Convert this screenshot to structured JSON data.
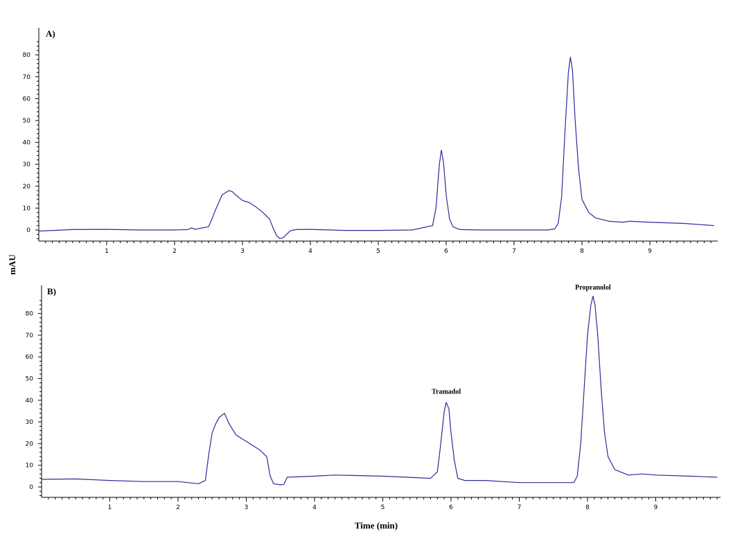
{
  "chart_data": [
    {
      "type": "line",
      "panel_label": "A)",
      "ylabel": "mAU",
      "xlabel": "",
      "xlim": [
        0,
        9.95
      ],
      "ylim": [
        -5,
        90
      ],
      "x_ticks": [
        1,
        2,
        3,
        4,
        5,
        6,
        7,
        8,
        9
      ],
      "y_ticks": [
        0,
        10,
        20,
        30,
        40,
        50,
        60,
        70,
        80
      ],
      "grid": false,
      "line_color": "#2b2b9a",
      "annotations": [],
      "series": [
        {
          "x": [
            0,
            0.5,
            1,
            1.5,
            2,
            2.2,
            2.25,
            2.3,
            2.5,
            2.55,
            2.6,
            2.7,
            2.8,
            2.85,
            2.9,
            3.0,
            3.1,
            3.2,
            3.3,
            3.4,
            3.45,
            3.5,
            3.55,
            3.6,
            3.65,
            3.7,
            3.75,
            3.8,
            4.0,
            4.5,
            5.0,
            5.5,
            5.8,
            5.85,
            5.9,
            5.93,
            5.96,
            6.0,
            6.05,
            6.1,
            6.2,
            6.5,
            7.0,
            7.5,
            7.6,
            7.65,
            7.7,
            7.75,
            7.8,
            7.83,
            7.86,
            7.9,
            7.95,
            8.0,
            8.1,
            8.2,
            8.4,
            8.6,
            8.7,
            9.0,
            9.5,
            9.95
          ],
          "y": [
            -0.5,
            0.2,
            0.3,
            0,
            0,
            0.2,
            1,
            0.3,
            1.5,
            5,
            9,
            16,
            18,
            17.5,
            16,
            13.5,
            12.5,
            10.5,
            8,
            5,
            1,
            -2.5,
            -4,
            -3.5,
            -2,
            -0.5,
            0,
            0.2,
            0.3,
            -0.2,
            -0.2,
            0,
            2,
            10,
            30,
            36.5,
            31,
            16,
            5,
            1.5,
            0.2,
            0,
            0,
            0,
            0.5,
            3,
            15,
            45,
            72,
            79,
            73,
            50,
            28,
            14,
            8,
            5.5,
            4,
            3.5,
            4,
            3.5,
            3,
            2
          ]
        }
      ]
    },
    {
      "type": "line",
      "panel_label": "B)",
      "ylabel": "",
      "xlabel": "Time (min)",
      "xlim": [
        0,
        9.95
      ],
      "ylim": [
        -5,
        90
      ],
      "x_ticks": [
        1,
        2,
        3,
        4,
        5,
        6,
        7,
        8,
        9
      ],
      "y_ticks": [
        0,
        10,
        20,
        30,
        40,
        50,
        60,
        70,
        80
      ],
      "grid": false,
      "line_color": "#2b2b9a",
      "annotations": [
        {
          "text": "Tramadol",
          "x": 5.93,
          "y": 43
        },
        {
          "text": "Propranolol",
          "x": 8.08,
          "y": 91
        }
      ],
      "series": [
        {
          "x": [
            0,
            0.5,
            1,
            1.5,
            2,
            2.3,
            2.4,
            2.45,
            2.5,
            2.55,
            2.6,
            2.68,
            2.75,
            2.85,
            3.0,
            3.2,
            3.3,
            3.35,
            3.4,
            3.5,
            3.55,
            3.6,
            4.0,
            4.3,
            5.0,
            5.7,
            5.8,
            5.85,
            5.9,
            5.93,
            5.97,
            6.0,
            6.05,
            6.1,
            6.2,
            6.5,
            7.0,
            7.5,
            7.8,
            7.85,
            7.9,
            7.95,
            8.0,
            8.05,
            8.08,
            8.11,
            8.15,
            8.2,
            8.25,
            8.3,
            8.4,
            8.6,
            8.8,
            9.0,
            9.5,
            9.9
          ],
          "y": [
            3.5,
            3.7,
            3,
            2.5,
            2.5,
            1.5,
            3,
            15,
            25,
            29,
            32,
            34,
            29,
            24,
            21,
            17,
            14,
            5,
            1.5,
            1,
            1.2,
            4.5,
            5,
            5.5,
            5,
            4,
            7,
            20,
            35,
            39,
            36,
            25,
            12,
            4,
            3,
            3,
            2,
            2,
            2,
            5,
            20,
            45,
            70,
            84,
            88,
            84,
            70,
            45,
            25,
            14,
            8,
            5.5,
            6,
            5.5,
            5,
            4.5
          ]
        }
      ]
    }
  ]
}
